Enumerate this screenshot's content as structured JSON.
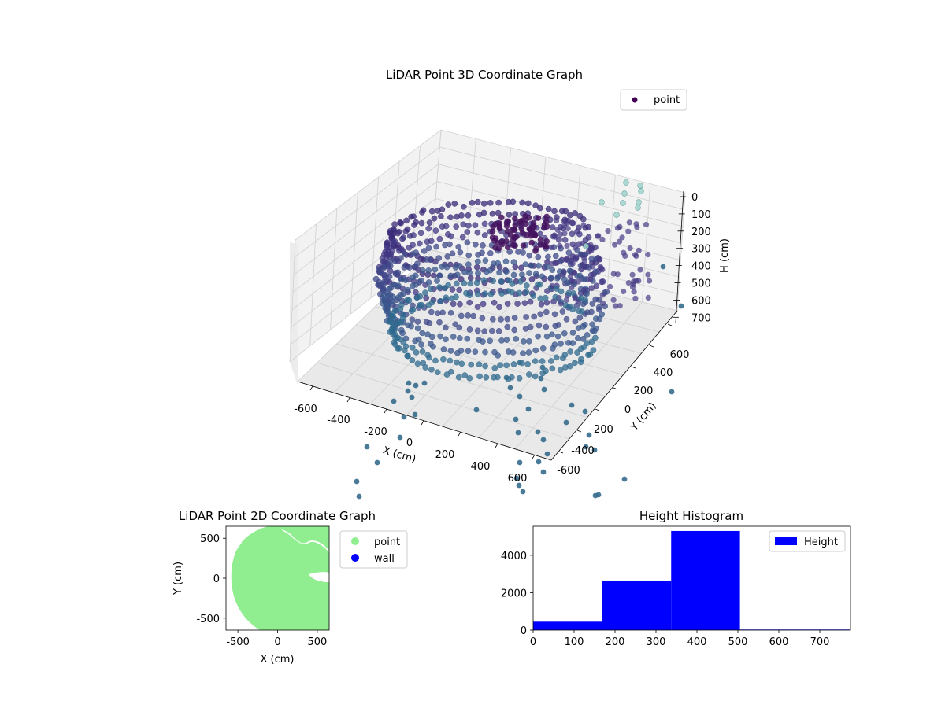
{
  "chart_data": [
    {
      "type": "scatter3d",
      "title": "LiDAR Point 3D Coordinate Graph",
      "xlabel": "X (cm)",
      "ylabel": "Y (cm)",
      "zlabel": "H (cm)",
      "xlim": [
        -650,
        650
      ],
      "ylim": [
        -650,
        650
      ],
      "zlim": [
        0,
        750
      ],
      "z_inverted": true,
      "xticks": [
        "-600",
        "-400",
        "-200",
        "0",
        "200",
        "400",
        "600"
      ],
      "yticks": [
        "-600",
        "-400",
        "-200",
        "0",
        "200",
        "400",
        "600"
      ],
      "zticks": [
        "0",
        "100",
        "200",
        "300",
        "400",
        "500",
        "600",
        "700"
      ],
      "legend": {
        "entries": [
          "point"
        ],
        "placement": "top-right"
      },
      "colormap": "viridis",
      "grid": true,
      "series": [
        {
          "name": "point",
          "color": "#3b1c6f"
        }
      ]
    },
    {
      "type": "scatter",
      "title": "LiDAR Point 2D Coordinate Graph",
      "xlabel": "X (cm)",
      "ylabel": "Y (cm)",
      "xlim": [
        -650,
        650
      ],
      "ylim": [
        -650,
        650
      ],
      "xticks": [
        "-500",
        "0",
        "500"
      ],
      "yticks": [
        "-500",
        "0",
        "500"
      ],
      "legend": {
        "entries": [
          "point",
          "wall"
        ],
        "placement": "outside-right"
      },
      "grid": false,
      "series": [
        {
          "name": "point",
          "color": "#90ee90"
        },
        {
          "name": "wall",
          "color": "#0000ff"
        }
      ]
    },
    {
      "type": "bar",
      "title": "Height Histogram",
      "xlim": [
        0,
        775
      ],
      "ylim": [
        0,
        5550
      ],
      "xticks": [
        "0",
        "100",
        "200",
        "300",
        "400",
        "500",
        "600",
        "700"
      ],
      "yticks": [
        "0",
        "2000",
        "4000"
      ],
      "legend": {
        "entries": [
          "Height"
        ],
        "placement": "top-right"
      },
      "grid": false,
      "bins": [
        {
          "start": 0,
          "end": 168,
          "value": 450
        },
        {
          "start": 168,
          "end": 337,
          "value": 2650
        },
        {
          "start": 337,
          "end": 505,
          "value": 5300
        },
        {
          "start": 505,
          "end": 775,
          "value": 30
        }
      ],
      "series": [
        {
          "name": "Height",
          "color": "#0000ff"
        }
      ]
    }
  ]
}
